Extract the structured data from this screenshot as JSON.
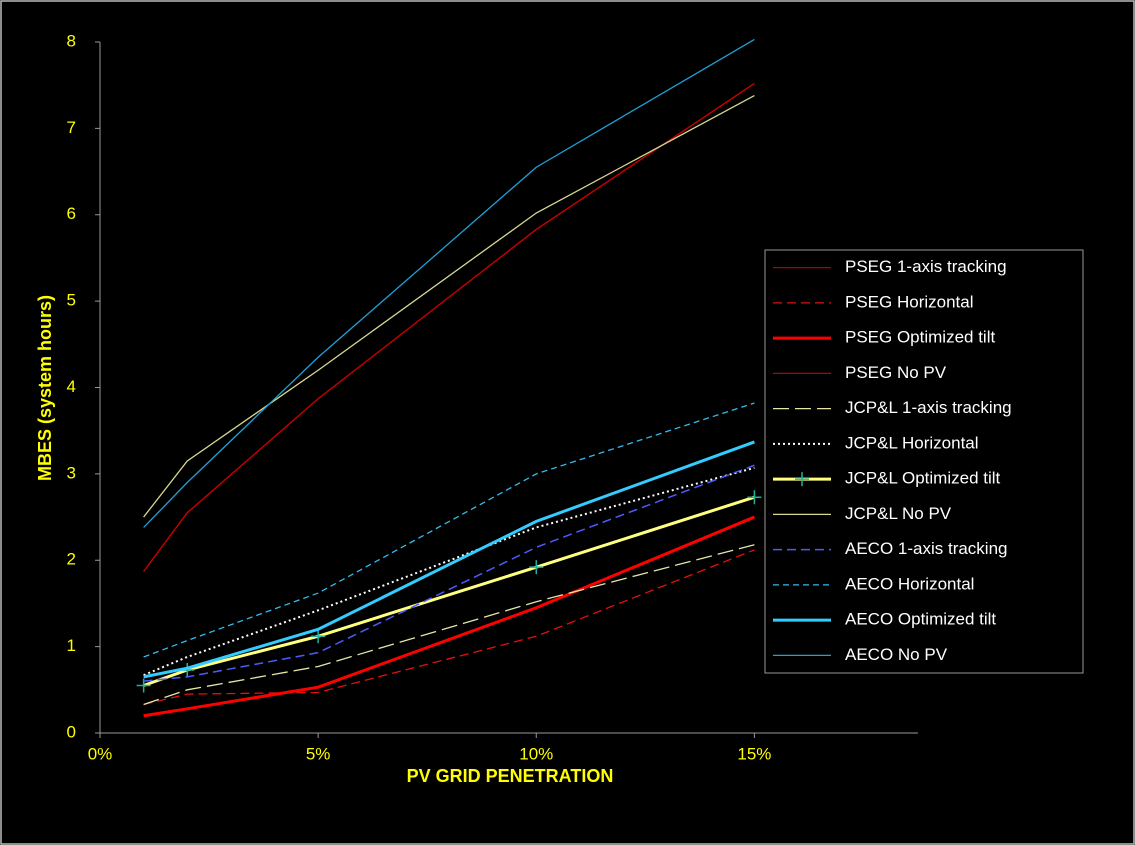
{
  "chart_data": {
    "type": "line",
    "x_label": "PV GRID PENETRATION",
    "y_label": "MBES (system hours)",
    "x": [
      1,
      2,
      5,
      10,
      15
    ],
    "xlim": [
      0,
      18.75
    ],
    "xticks": [
      {
        "value": 0,
        "label": "0%"
      },
      {
        "value": 5,
        "label": "5%"
      },
      {
        "value": 10,
        "label": "10%"
      },
      {
        "value": 15,
        "label": "15%"
      }
    ],
    "ylim": [
      0,
      8
    ],
    "yticks": [
      0,
      1,
      2,
      3,
      4,
      5,
      6,
      7,
      8
    ],
    "legend": "right",
    "series": [
      {
        "name": "PSEG 1-axis tracking",
        "color": "#b00000",
        "width": 1.3,
        "dash": "",
        "values": [
          1.87,
          2.55,
          3.87,
          5.83,
          7.52
        ]
      },
      {
        "name": "PSEG Horizontal",
        "color": "#e01010",
        "width": 1.3,
        "dash": "9 5",
        "values": [
          0.33,
          0.45,
          0.47,
          1.12,
          2.12
        ]
      },
      {
        "name": "PSEG Optimized tilt",
        "color": "#ff0000",
        "width": 3,
        "dash": "",
        "values": [
          0.2,
          0.28,
          0.53,
          1.45,
          2.5
        ]
      },
      {
        "name": "PSEG No PV",
        "color": "#c00000",
        "width": 1.3,
        "dash": "",
        "values": [
          1.87,
          2.55,
          3.87,
          5.83,
          7.52
        ]
      },
      {
        "name": "JCP&L 1-axis tracking",
        "color": "#e6e6a8",
        "width": 1.3,
        "dash": "16 6",
        "values": [
          0.33,
          0.5,
          0.77,
          1.52,
          2.18
        ]
      },
      {
        "name": "JCP&L Horizontal",
        "color": "#ffffff",
        "width": 2,
        "dash": "2 3",
        "values": [
          0.67,
          0.88,
          1.42,
          2.38,
          3.07
        ]
      },
      {
        "name": "JCP&L Optimized tilt",
        "color": "#ffff80",
        "width": 3,
        "dash": "",
        "marker": "+",
        "marker_color": "#20b0a0",
        "values": [
          0.55,
          0.73,
          1.12,
          1.92,
          2.73
        ]
      },
      {
        "name": "JCP&L No PV",
        "color": "#d8d890",
        "width": 1.3,
        "dash": "",
        "values": [
          2.5,
          3.15,
          4.2,
          6.02,
          7.38
        ]
      },
      {
        "name": "AECO 1-axis tracking",
        "color": "#4a5cff",
        "width": 1.5,
        "dash": "9 5",
        "values": [
          0.6,
          0.65,
          0.93,
          2.15,
          3.1
        ]
      },
      {
        "name": "AECO Horizontal",
        "color": "#33bbee",
        "width": 1.3,
        "dash": "6 4",
        "values": [
          0.88,
          1.07,
          1.62,
          3.0,
          3.82
        ]
      },
      {
        "name": "AECO Optimized tilt",
        "color": "#33ccff",
        "width": 3,
        "dash": "",
        "values": [
          0.65,
          0.75,
          1.2,
          2.45,
          3.37
        ]
      },
      {
        "name": "AECO No PV",
        "color": "#1fa0d8",
        "width": 1.3,
        "dash": "",
        "values": [
          2.38,
          2.9,
          4.35,
          6.55,
          8.03
        ]
      }
    ]
  }
}
